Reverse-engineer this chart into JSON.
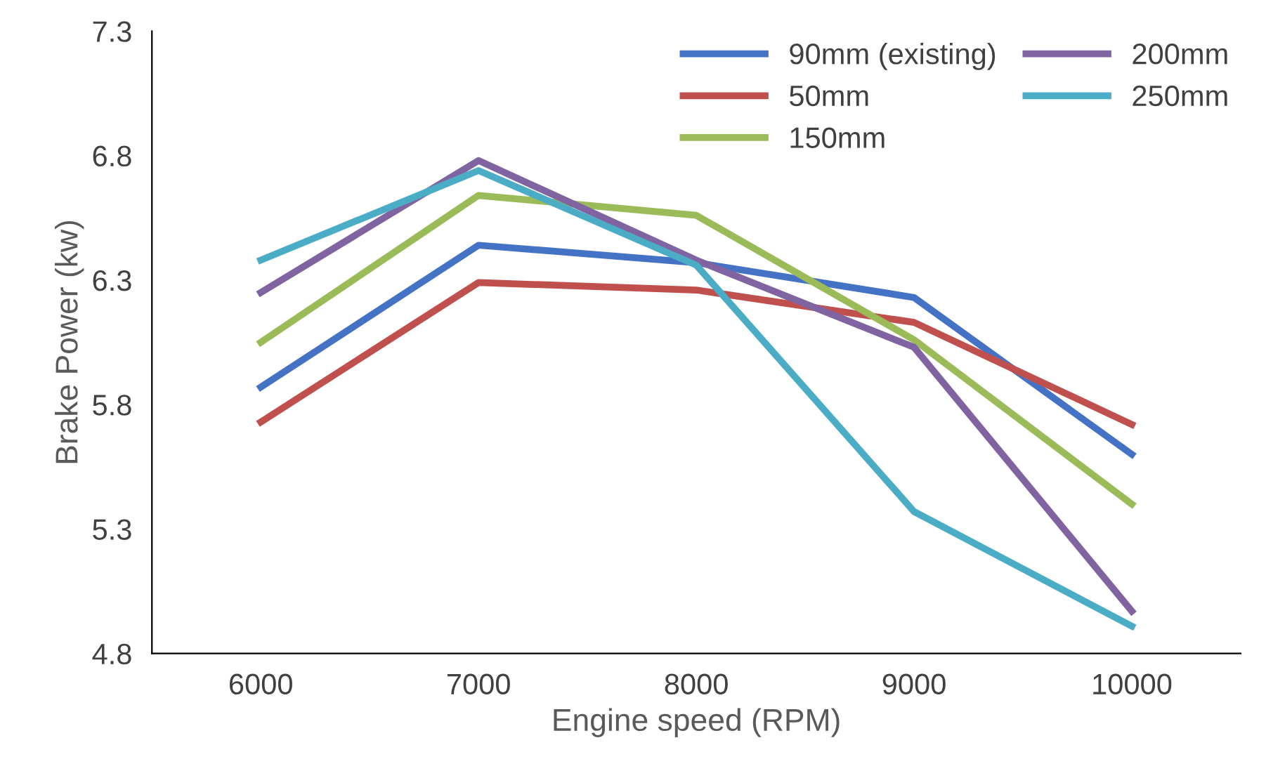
{
  "chart_data": {
    "type": "line",
    "xlabel": "Engine speed (RPM)",
    "ylabel": "Brake Power (kw)",
    "categories": [
      "6000",
      "7000",
      "8000",
      "9000",
      "10000"
    ],
    "series": [
      {
        "name": "90mm (existing)",
        "color": "#4472c4",
        "values": [
          5.87,
          6.44,
          6.37,
          6.23,
          5.6
        ]
      },
      {
        "name": "50mm",
        "color": "#c0504d",
        "values": [
          5.73,
          6.29,
          6.26,
          6.13,
          5.72
        ]
      },
      {
        "name": "150mm",
        "color": "#9bbb59",
        "values": [
          6.05,
          6.64,
          6.56,
          6.06,
          5.4
        ]
      },
      {
        "name": "200mm",
        "color": "#8064a2",
        "values": [
          6.25,
          6.78,
          6.38,
          6.03,
          4.97
        ]
      },
      {
        "name": "250mm",
        "color": "#4bacc6",
        "values": [
          6.38,
          6.74,
          6.36,
          5.37,
          4.91
        ]
      }
    ],
    "ylim": [
      4.8,
      7.3
    ],
    "yticks": [
      4.8,
      5.3,
      5.8,
      6.3,
      6.8,
      7.3
    ],
    "grid": false,
    "legend": "top right",
    "marker": "none",
    "line_style": "solid"
  }
}
